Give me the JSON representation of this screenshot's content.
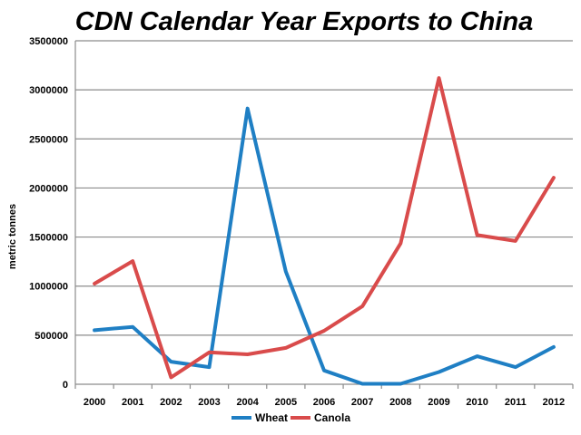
{
  "chart_data": {
    "type": "line",
    "title": "CDN Calendar Year Exports to China",
    "xlabel": "",
    "ylabel": "metric tonnes",
    "categories": [
      "2000",
      "2001",
      "2002",
      "2003",
      "2004",
      "2005",
      "2006",
      "2007",
      "2008",
      "2009",
      "2010",
      "2011",
      "2012"
    ],
    "ylim": [
      0,
      3500000
    ],
    "yticks": [
      "0",
      "500000",
      "1000000",
      "1500000",
      "2000000",
      "2500000",
      "3000000",
      "3500000"
    ],
    "grid": true,
    "legend_position": "bottom",
    "series": [
      {
        "name": "Wheat",
        "color": "#1f7fc4",
        "values": [
          550000,
          585000,
          230000,
          175000,
          2810000,
          1150000,
          140000,
          5000,
          5000,
          125000,
          285000,
          175000,
          380000
        ]
      },
      {
        "name": "Canola",
        "color": "#d94b4b",
        "values": [
          1025000,
          1255000,
          70000,
          325000,
          305000,
          370000,
          545000,
          795000,
          1435000,
          3120000,
          1520000,
          1460000,
          2105000
        ]
      }
    ]
  }
}
